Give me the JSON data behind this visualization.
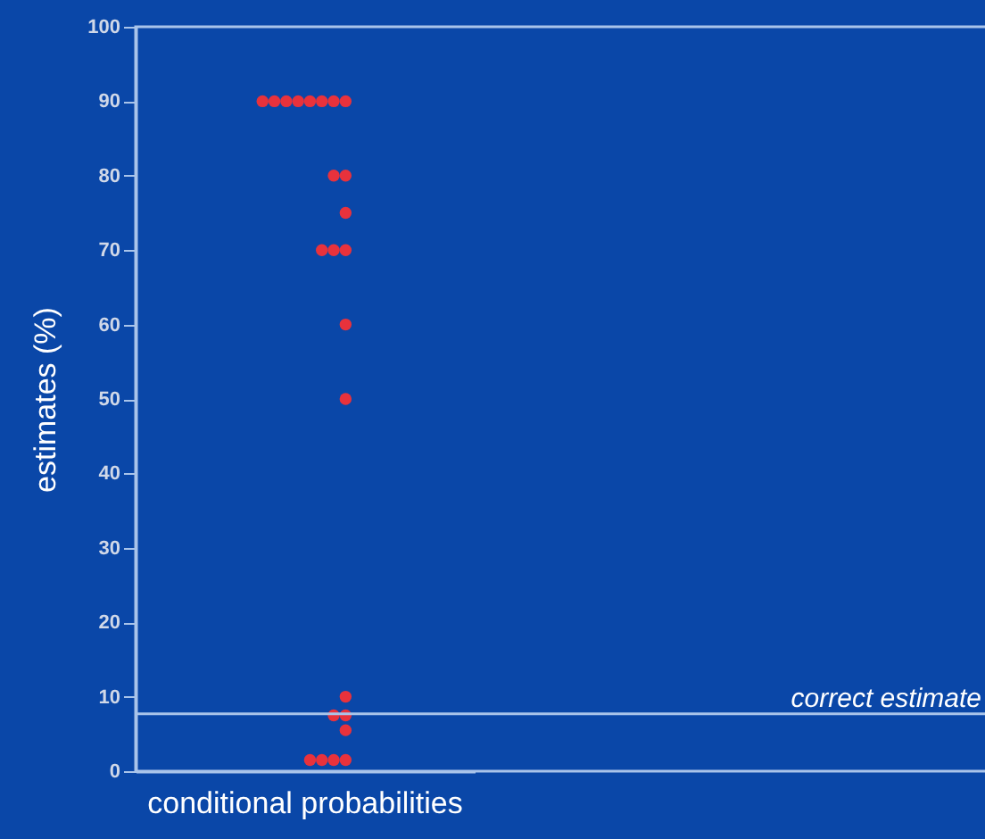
{
  "chart_data": {
    "type": "scatter",
    "ylabel": "estimates (%)",
    "categories": [
      "conditional probabilities"
    ],
    "series": [
      {
        "color": "#e8323c",
        "x": [
          "conditional probabilities",
          "conditional probabilities",
          "conditional probabilities",
          "conditional probabilities",
          "conditional probabilities",
          "conditional probabilities",
          "conditional probabilities",
          "conditional probabilities",
          "conditional probabilities",
          "conditional probabilities",
          "conditional probabilities",
          "conditional probabilities",
          "conditional probabilities",
          "conditional probabilities",
          "conditional probabilities",
          "conditional probabilities",
          "conditional probabilities",
          "conditional probabilities",
          "conditional probabilities",
          "conditional probabilities",
          "conditional probabilities",
          "conditional probabilities",
          "conditional probabilities",
          "conditional probabilities"
        ],
        "values": [
          90,
          90,
          90,
          90,
          90,
          90,
          90,
          90,
          80,
          80,
          75,
          70,
          70,
          70,
          60,
          50,
          10,
          7.5,
          7.5,
          5.5,
          1.5,
          1.5,
          1.5,
          1.5
        ]
      }
    ],
    "ylim": [
      0,
      100
    ],
    "yticks": [
      0,
      10,
      20,
      30,
      40,
      50,
      60,
      70,
      80,
      90,
      100
    ],
    "marker": "circle",
    "ref_lines": [
      {
        "axis": "y",
        "value": 7.7,
        "label": "correct estimate",
        "color": "#a9c4ea"
      }
    ]
  }
}
